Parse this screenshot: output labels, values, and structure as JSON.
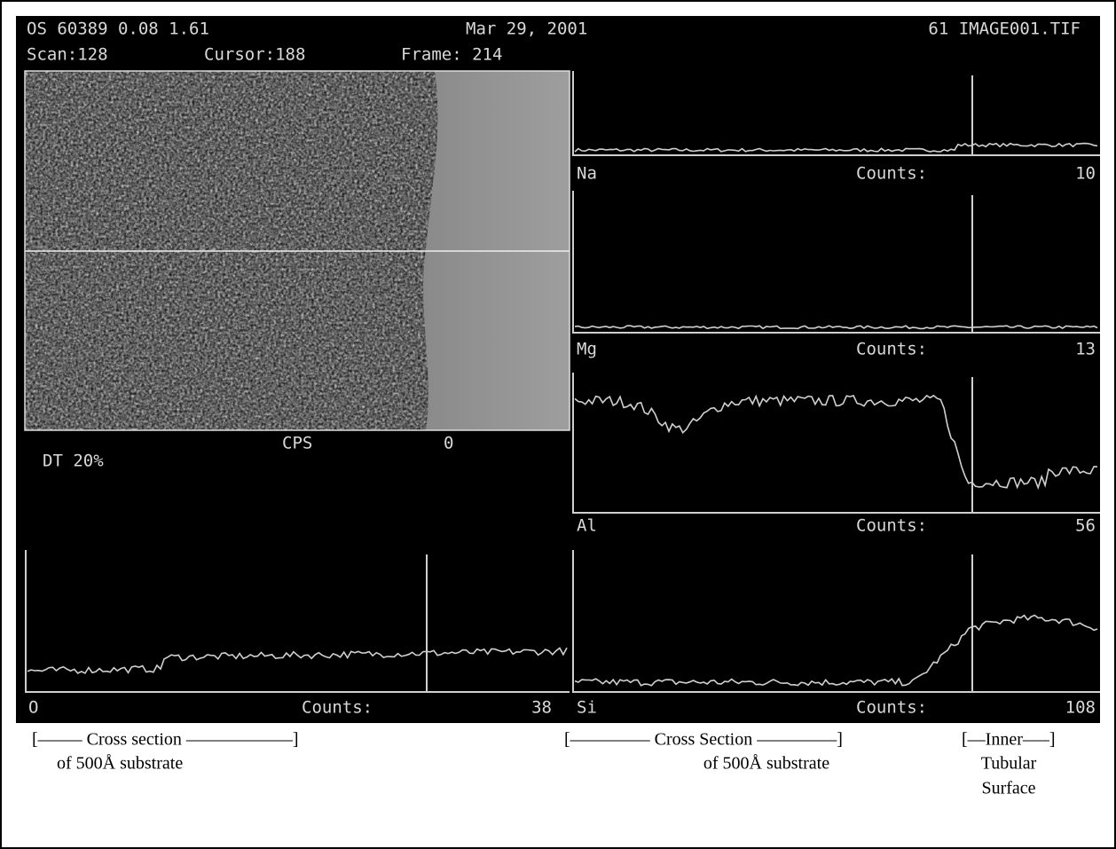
{
  "header": {
    "id": "OS 60389 0.08 1.61",
    "date": "Mar 29, 2001",
    "file": "61 IMAGE001.TIF",
    "scan": "Scan:128",
    "cursor": "Cursor:188",
    "frame": "Frame: 214"
  },
  "status": {
    "cps_label": "CPS",
    "cps_value": 0,
    "dead_time": "DT 20%"
  },
  "panels": [
    {
      "element": "Na",
      "counts_label": "Counts:",
      "counts": 10
    },
    {
      "element": "Mg",
      "counts_label": "Counts:",
      "counts": 13
    },
    {
      "element": "Al",
      "counts_label": "Counts:",
      "counts": 56
    },
    {
      "element": "Si",
      "counts_label": "Counts:",
      "counts": 108
    },
    {
      "element": "O",
      "counts_label": "Counts:",
      "counts": 38
    }
  ],
  "captions": [
    {
      "lines": [
        "[——– Cross section ——————]",
        "of 500Å substrate"
      ]
    },
    {
      "lines": [
        "[————– Cross Section ————–]",
        "of 500Å substrate"
      ]
    },
    {
      "lines": [
        "[—Inner—–]",
        "Tubular",
        "Surface"
      ]
    }
  ]
}
